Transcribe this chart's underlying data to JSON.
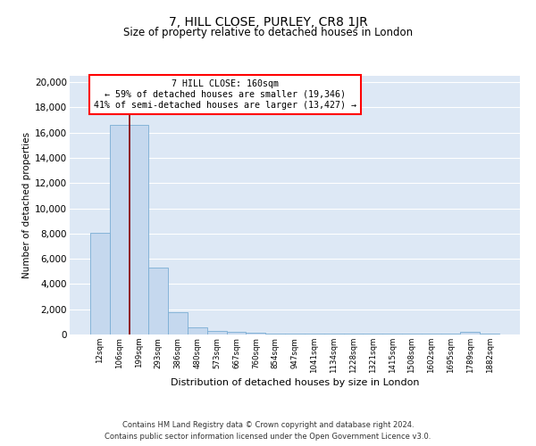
{
  "title1": "7, HILL CLOSE, PURLEY, CR8 1JR",
  "title2": "Size of property relative to detached houses in London",
  "xlabel": "Distribution of detached houses by size in London",
  "ylabel": "Number of detached properties",
  "property_label": "7 HILL CLOSE: 160sqm",
  "annotation_line1": "← 59% of detached houses are smaller (19,346)",
  "annotation_line2": "41% of semi-detached houses are larger (13,427) →",
  "bin_labels": [
    "12sqm",
    "106sqm",
    "199sqm",
    "293sqm",
    "386sqm",
    "480sqm",
    "573sqm",
    "667sqm",
    "760sqm",
    "854sqm",
    "947sqm",
    "1041sqm",
    "1134sqm",
    "1228sqm",
    "1321sqm",
    "1415sqm",
    "1508sqm",
    "1602sqm",
    "1695sqm",
    "1789sqm",
    "1882sqm"
  ],
  "bar_values": [
    8050,
    16600,
    16600,
    5300,
    1750,
    600,
    300,
    200,
    150,
    100,
    100,
    100,
    100,
    100,
    100,
    100,
    100,
    100,
    100,
    200,
    100
  ],
  "bar_color": "#c5d8ee",
  "bar_edge_color": "#7aadd4",
  "red_line_x": 1.5,
  "ylim": [
    0,
    20500
  ],
  "yticks": [
    0,
    2000,
    4000,
    6000,
    8000,
    10000,
    12000,
    14000,
    16000,
    18000,
    20000
  ],
  "background_color": "#dde8f5",
  "grid_color": "#ffffff",
  "footer_line1": "Contains HM Land Registry data © Crown copyright and database right 2024.",
  "footer_line2": "Contains public sector information licensed under the Open Government Licence v3.0."
}
